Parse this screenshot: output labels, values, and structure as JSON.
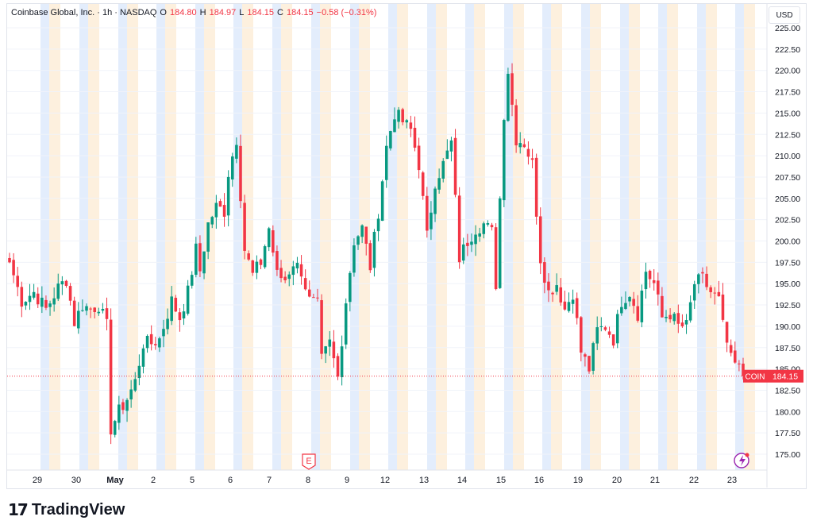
{
  "header": {
    "title": "Coinbase Global, Inc. · 1h · NASDAQ",
    "open_label": "O",
    "open": "184.80",
    "high_label": "H",
    "high": "184.97",
    "low_label": "L",
    "low": "184.15",
    "close_label": "C",
    "close": "184.15",
    "change": "−0.58 (−0.31%)",
    "currency": "USD"
  },
  "price_tag": {
    "symbol": "COIN",
    "value": "184.15"
  },
  "event_marker": "E",
  "brand": {
    "name": "TradingView"
  },
  "colors": {
    "up": "#089981",
    "down": "#f23645",
    "session_pre": "#e3edfc",
    "session_post": "#fdf0de",
    "grid": "#f0f3fa",
    "price_line": "#f23645"
  },
  "icons": {
    "logo": "tradingview-logo-icon",
    "flash": "flash-icon",
    "earnings": "earnings-icon"
  },
  "chart_data": {
    "type": "candlestick",
    "y_axis": {
      "range": [
        172.5,
        225
      ],
      "ticks": [
        "175.00",
        "177.50",
        "180.00",
        "182.50",
        "185.00",
        "187.50",
        "190.00",
        "192.50",
        "195.00",
        "197.50",
        "200.00",
        "202.50",
        "205.00",
        "207.50",
        "210.00",
        "212.50",
        "215.00",
        "217.50",
        "220.00",
        "222.50",
        "225.00"
      ]
    },
    "x_axis": {
      "labels": [
        "29",
        "30",
        "May",
        "2",
        "5",
        "6",
        "7",
        "8",
        "9",
        "12",
        "13",
        "14",
        "15",
        "16",
        "19",
        "20",
        "21",
        "22",
        "23"
      ]
    },
    "last_price": 184.15,
    "approx_path": [
      [
        0,
        197.5
      ],
      [
        3,
        193
      ],
      [
        6,
        194
      ],
      [
        9,
        192
      ],
      [
        12,
        194.5
      ],
      [
        14,
        195.5
      ],
      [
        16,
        190.5
      ],
      [
        18,
        192.5
      ],
      [
        20,
        192
      ],
      [
        22,
        192.5
      ],
      [
        24,
        190
      ],
      [
        25,
        178
      ],
      [
        27,
        180
      ],
      [
        29,
        181.5
      ],
      [
        31,
        183.5
      ],
      [
        33,
        188
      ],
      [
        35,
        188
      ],
      [
        37,
        188.5
      ],
      [
        38,
        190
      ],
      [
        40,
        193
      ],
      [
        42,
        191
      ],
      [
        44,
        194
      ],
      [
        46,
        199
      ],
      [
        47,
        196.5
      ],
      [
        49,
        202
      ],
      [
        51,
        204
      ],
      [
        53,
        203.5
      ],
      [
        54,
        208
      ],
      [
        56,
        212
      ],
      [
        58,
        199
      ],
      [
        60,
        196
      ],
      [
        62,
        197.5
      ],
      [
        64,
        201.5
      ],
      [
        66,
        196
      ],
      [
        68,
        195.5
      ],
      [
        70,
        197.5
      ],
      [
        72,
        196.5
      ],
      [
        74,
        193
      ],
      [
        76,
        192.5
      ],
      [
        77,
        186
      ],
      [
        79,
        188
      ],
      [
        81,
        184
      ],
      [
        83,
        193
      ],
      [
        85,
        200
      ],
      [
        87,
        201.5
      ],
      [
        89,
        197
      ],
      [
        91,
        203.5
      ],
      [
        93,
        211
      ],
      [
        95,
        215
      ],
      [
        97,
        214
      ],
      [
        99,
        213
      ],
      [
        101,
        209
      ],
      [
        103,
        200.5
      ],
      [
        105,
        207
      ],
      [
        107,
        209
      ],
      [
        109,
        211.5
      ],
      [
        111,
        198
      ],
      [
        113,
        200
      ],
      [
        115,
        201.5
      ],
      [
        117,
        202
      ],
      [
        119,
        201
      ],
      [
        120,
        195
      ],
      [
        122,
        215
      ],
      [
        123,
        220
      ],
      [
        125,
        212
      ],
      [
        127,
        211.5
      ],
      [
        129,
        209
      ],
      [
        131,
        198
      ],
      [
        133,
        194
      ],
      [
        135,
        195
      ],
      [
        137,
        192
      ],
      [
        139,
        194
      ],
      [
        141,
        187
      ],
      [
        143,
        185
      ],
      [
        145,
        189.5
      ],
      [
        147,
        190
      ],
      [
        149,
        188.5
      ],
      [
        151,
        193
      ],
      [
        153,
        194
      ],
      [
        155,
        191.5
      ],
      [
        157,
        196.5
      ],
      [
        159,
        195
      ],
      [
        161,
        191
      ],
      [
        163,
        191.5
      ],
      [
        165,
        190
      ],
      [
        167,
        190
      ],
      [
        169,
        195
      ],
      [
        171,
        195.5
      ],
      [
        173,
        194
      ],
      [
        175,
        193
      ],
      [
        176,
        190
      ],
      [
        178,
        186
      ],
      [
        180,
        185
      ],
      [
        181,
        184.15
      ]
    ]
  }
}
